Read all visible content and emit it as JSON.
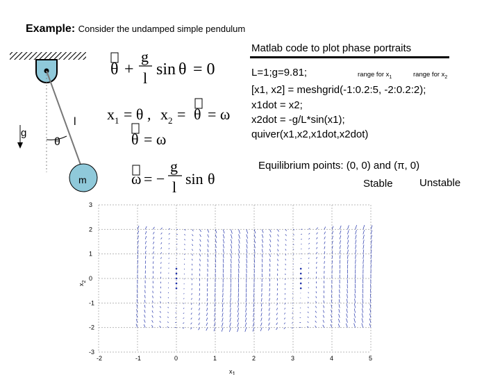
{
  "slide": {
    "title_bold": "Example:",
    "title_rest": "Consider the undamped simple pendulum",
    "matlab_heading": "Matlab code to plot  phase portraits",
    "code_lines": [
      "L=1;g=9.81;",
      "[x1, x2] = meshgrid(-1:0.2:5, -2:0.2:2);",
      "x1dot = x2;",
      "x2dot = -g/L*sin(x1);",
      "quiver(x1,x2,x1dot,x2dot)"
    ],
    "range_x1": "range for x",
    "range_x1_sub": "1",
    "range_x2": "range for x",
    "range_x2_sub": "2",
    "equilibrium": "Equilibrium points:  (0, 0) and (π, 0)",
    "stable": "Stable",
    "unstable": "Unstable"
  },
  "pendulum": {
    "g_label": "g",
    "l_label": "l",
    "theta_label": "θ",
    "m_label": "m"
  },
  "equations": {
    "eq1_a": "θ",
    "eq1_plus": "+",
    "eq1_g": "g",
    "eq1_l": "l",
    "eq1_sin": "sin",
    "eq1_theta": "θ",
    "eq1_zero": "= 0",
    "eq2_x1": "x",
    "eq2_x1_sub": "1",
    "eq2_eq1": "= θ ,",
    "eq2_x2": "x",
    "eq2_x2_sub": "2",
    "eq2_eq2": "=",
    "eq2_theta": "θ",
    "eq2_eq3": "= ω",
    "eq3_theta": "θ",
    "eq3_rest": "= ω",
    "eq4_omega": "ω",
    "eq4_eq": "= −",
    "eq4_g": "g",
    "eq4_l": "l",
    "eq4_sin": "sin",
    "eq4_theta": "θ"
  },
  "plot": {
    "xlabel": "x",
    "xlabel_sub": "1",
    "ylabel": "x",
    "ylabel_sub": "2",
    "x_ticks": [
      "-2",
      "-1",
      "0",
      "1",
      "2",
      "3",
      "4",
      "5"
    ],
    "y_ticks": [
      "3",
      "2",
      "1",
      "0",
      "-1",
      "-2",
      "-3"
    ]
  },
  "colors": {
    "arrow": "#2233aa",
    "grid": "#b8b8b8",
    "pendulum_bob": "#8fc9da",
    "ceiling": "#000000"
  }
}
